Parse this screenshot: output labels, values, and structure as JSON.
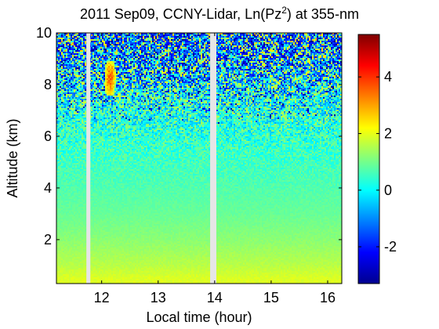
{
  "chart_data": {
    "type": "heatmap",
    "title_prefix": "2011 Sep09, CCNY-Lidar, Ln(Pz",
    "title_sup": "2",
    "title_suffix": ") at 355-nm",
    "xlabel": "Local time (hour)",
    "ylabel": "Altitude (km)",
    "xlim": [
      11.2,
      16.25
    ],
    "ylim": [
      0.3,
      10
    ],
    "x_ticks": [
      12,
      13,
      14,
      15,
      16
    ],
    "y_ticks": [
      2,
      4,
      6,
      8,
      10
    ],
    "colorbar": {
      "colormap": "jet",
      "range": [
        -3.3,
        5.5
      ],
      "ticks": [
        -2,
        0,
        2,
        4
      ]
    },
    "data_gaps": [
      [
        11.73,
        11.8
      ],
      [
        13.92,
        14.03
      ]
    ],
    "features": {
      "signal_profile": [
        {
          "altitude": 0.5,
          "value": 1.9
        },
        {
          "altitude": 1,
          "value": 1.6
        },
        {
          "altitude": 2,
          "value": 1.2
        },
        {
          "altitude": 3,
          "value": 0.9
        },
        {
          "altitude": 4,
          "value": 0.7
        },
        {
          "altitude": 5,
          "value": 0.55
        },
        {
          "altitude": 6,
          "value": 0.4
        },
        {
          "altitude": 7,
          "value": 0.3
        },
        {
          "altitude": 8,
          "value": 0.2
        },
        {
          "altitude": 10,
          "value": 0.1
        }
      ],
      "noise_onset_altitude_km": 6.5,
      "cloud": {
        "time_start": 12.05,
        "time_end": 12.25,
        "alt_bottom": 7.6,
        "alt_top": 8.9,
        "peak_value": 3.5
      }
    }
  }
}
